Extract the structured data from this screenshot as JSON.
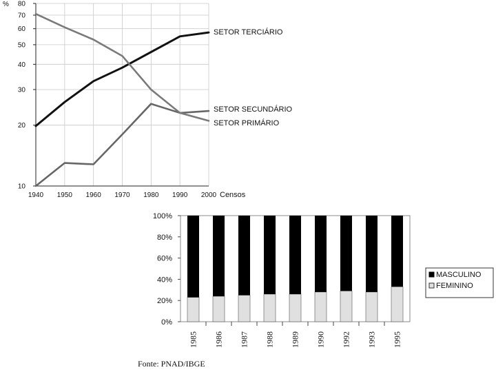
{
  "chart_data": [
    {
      "type": "line",
      "y_unit": "%",
      "y_scale": "log",
      "ylim": [
        10,
        80
      ],
      "y_ticks": [
        10,
        20,
        30,
        40,
        50,
        60,
        70,
        80
      ],
      "x": [
        1940,
        1950,
        1960,
        1970,
        1980,
        1990,
        2000
      ],
      "xlabel": "Censos",
      "grid": true,
      "series": [
        {
          "name": "SETOR TERCIÁRIO",
          "color": "#111111",
          "values": [
            19.8,
            26,
            33,
            38.5,
            46,
            55,
            57.5
          ]
        },
        {
          "name": "SETOR SECUNDÁRIO",
          "color": "#666666",
          "values": [
            10,
            13,
            12.8,
            18,
            25.5,
            23,
            23.5
          ]
        },
        {
          "name": "SETOR PRIMÁRIO",
          "color": "#7a7a7a",
          "values": [
            71,
            61,
            53,
            44,
            30,
            23,
            21
          ]
        }
      ]
    },
    {
      "type": "bar",
      "stacked": true,
      "categories": [
        "1985",
        "1986",
        "1987",
        "1988",
        "1989",
        "1990",
        "1992",
        "1993",
        "1995"
      ],
      "y_ticks": [
        "0%",
        "20%",
        "40%",
        "60%",
        "80%",
        "100%"
      ],
      "ylim": [
        0,
        100
      ],
      "legend_position": "right",
      "series": [
        {
          "name": "FEMININO",
          "color": "#e0e0e0",
          "values": [
            23,
            24,
            25,
            26,
            26,
            28,
            29,
            28,
            33
          ]
        },
        {
          "name": "MASCULINO",
          "color": "#000000",
          "values": [
            77,
            76,
            75,
            74,
            74,
            72,
            71,
            72,
            67
          ]
        }
      ],
      "source": "Fonte: PNAD/IBGE"
    }
  ]
}
